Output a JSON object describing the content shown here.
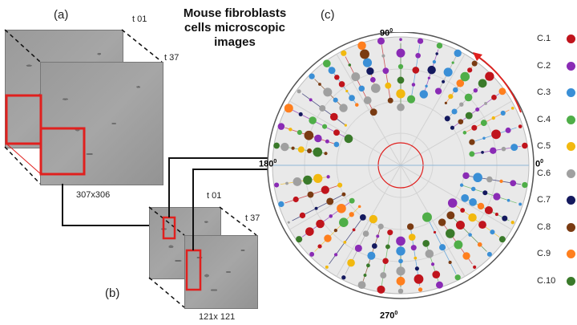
{
  "labels": {
    "a": "(a)",
    "b": "(b)",
    "c": "(c)",
    "title": "Mouse fibroblasts cells microscopic images",
    "t01_a": "t 01",
    "t37_a": "t 37",
    "t01_b": "t 01",
    "t37_b": "t 37",
    "size_a": "307x306",
    "size_b": "121x 121"
  },
  "polar": {
    "angle_90": "90",
    "angle_180": "180",
    "angle_270": "270",
    "angle_0": "0",
    "degree_mark": "0",
    "ring_color": "#dcdcdc",
    "bg_color": "#e9e9e9",
    "arrow_color": "#e0201e"
  },
  "legend": [
    {
      "label": "C.1",
      "color": "#c0141c"
    },
    {
      "label": "C.2",
      "color": "#8a2bb5"
    },
    {
      "label": "C.3",
      "color": "#3a8fd6"
    },
    {
      "label": "C.4",
      "color": "#4fae48"
    },
    {
      "label": "C.5",
      "color": "#f2b90f"
    },
    {
      "label": "C.6",
      "color": "#a0a0a0"
    },
    {
      "label": "C.7",
      "color": "#14195e"
    },
    {
      "label": "C.8",
      "color": "#7a3b12"
    },
    {
      "label": "C.9",
      "color": "#ff7f1e"
    },
    {
      "label": "C.10",
      "color": "#3a7a2a"
    }
  ]
}
